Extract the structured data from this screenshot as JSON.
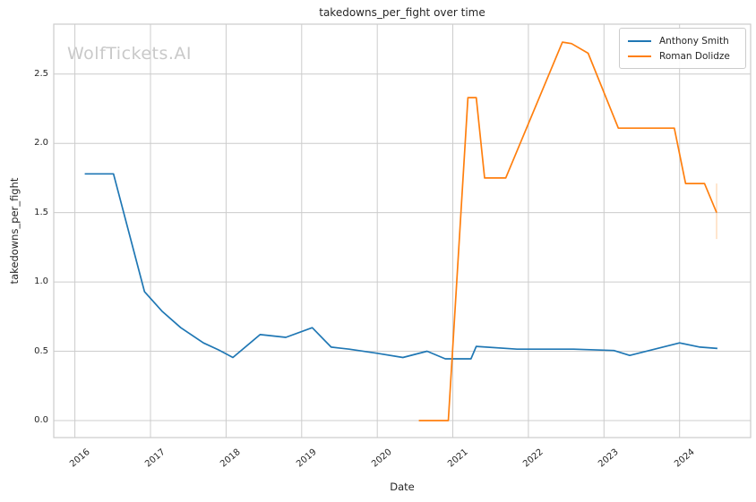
{
  "watermark": "WolfTickets.AI",
  "chart_data": {
    "type": "line",
    "title": "takedowns_per_fight over time",
    "xlabel": "Date",
    "ylabel": "takedowns_per_fight",
    "grid": true,
    "legend_position": "upper right",
    "xlim": [
      2015.72,
      2024.94
    ],
    "ylim": [
      -0.123,
      2.86
    ],
    "x_ticks": [
      "2016",
      "2017",
      "2018",
      "2019",
      "2020",
      "2021",
      "2022",
      "2023",
      "2024"
    ],
    "x_tick_values": [
      2016,
      2017,
      2018,
      2019,
      2020,
      2021,
      2022,
      2023,
      2024
    ],
    "y_ticks": [
      "0.0",
      "0.5",
      "1.0",
      "1.5",
      "2.0",
      "2.5"
    ],
    "y_tick_values": [
      0.0,
      0.5,
      1.0,
      1.5,
      2.0,
      2.5
    ],
    "grid_color": "#cccccc",
    "series": [
      {
        "name": "Anthony Smith",
        "color": "#1f77b4",
        "x": [
          2016.13,
          2016.51,
          2016.92,
          2017.15,
          2017.4,
          2017.7,
          2017.9,
          2018.09,
          2018.45,
          2018.79,
          2019.14,
          2019.39,
          2019.63,
          2020.0,
          2020.34,
          2020.66,
          2020.9,
          2021.24,
          2021.31,
          2021.85,
          2022.6,
          2023.13,
          2023.34,
          2024.0,
          2024.27,
          2024.5
        ],
        "y": [
          1.78,
          1.78,
          0.93,
          0.79,
          0.67,
          0.56,
          0.51,
          0.455,
          0.62,
          0.6,
          0.67,
          0.53,
          0.515,
          0.485,
          0.455,
          0.5,
          0.445,
          0.445,
          0.535,
          0.515,
          0.515,
          0.505,
          0.47,
          0.56,
          0.53,
          0.52
        ]
      },
      {
        "name": "Roman Dolidze",
        "color": "#ff7f0e",
        "x": [
          2020.55,
          2020.94,
          2021.2,
          2021.31,
          2021.42,
          2021.7,
          2022.45,
          2022.57,
          2022.79,
          2023.19,
          2023.93,
          2024.08,
          2024.33,
          2024.49
        ],
        "y": [
          0.0,
          0.0,
          2.33,
          2.33,
          1.75,
          1.75,
          2.73,
          2.72,
          2.65,
          2.11,
          2.11,
          1.71,
          1.71,
          1.5
        ]
      }
    ],
    "annotations": [
      {
        "type": "faint-vline",
        "x": 2024.49,
        "y1": 1.71,
        "y2": 1.31,
        "color": "#ff7f0e",
        "opacity": 0.25
      }
    ]
  }
}
